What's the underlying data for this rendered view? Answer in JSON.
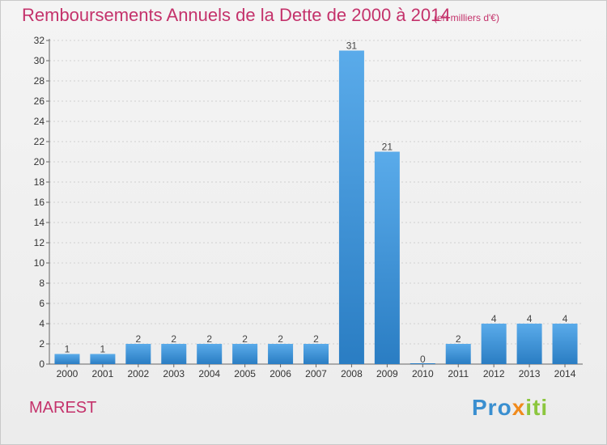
{
  "header": {
    "title": "Remboursements Annuels de la Dette de 2000 à 2014",
    "unit": "(en milliers d'€)"
  },
  "footer": {
    "commune": "MAREST",
    "brand": "Proxiti"
  },
  "colors": {
    "title": "#c4326b",
    "bar_light": "#5aabea",
    "bar_dark": "#2a7dc3",
    "grid": "#d0d0d0"
  },
  "chart_data": {
    "type": "bar",
    "categories": [
      "2000",
      "2001",
      "2002",
      "2003",
      "2004",
      "2005",
      "2006",
      "2007",
      "2008",
      "2009",
      "2010",
      "2011",
      "2012",
      "2013",
      "2014"
    ],
    "values": [
      1,
      1,
      2,
      2,
      2,
      2,
      2,
      2,
      31,
      21,
      0,
      2,
      4,
      4,
      4
    ],
    "ylim": [
      0,
      32
    ],
    "yticks": [
      0,
      2,
      4,
      6,
      8,
      10,
      12,
      14,
      16,
      18,
      20,
      22,
      24,
      26,
      28,
      30,
      32
    ],
    "grid": true,
    "data_labels": true
  }
}
